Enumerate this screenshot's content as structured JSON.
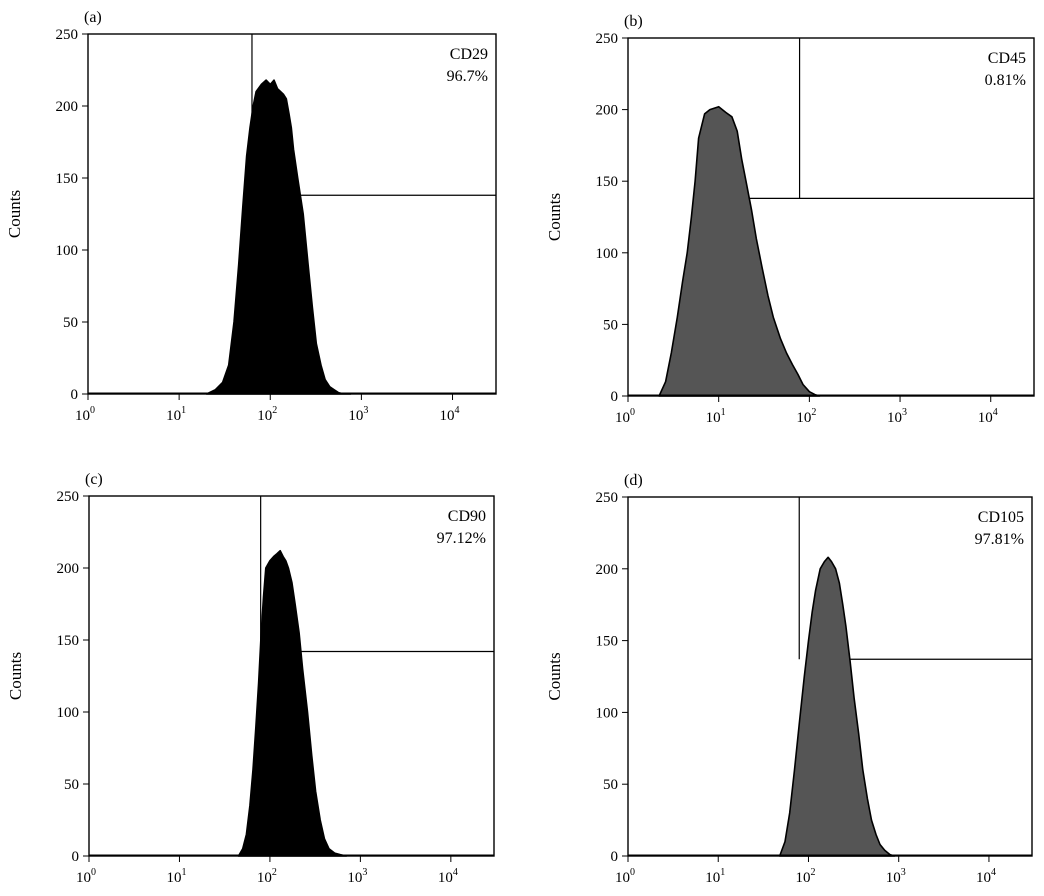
{
  "chart_data": [
    {
      "panel": "(a)",
      "type": "area",
      "ylabel": "Counts",
      "marker": "CD29",
      "percentage": "96.7%",
      "fill_color": "#000000",
      "x_scale": "log",
      "xlim": [
        1,
        30000
      ],
      "ylim": [
        0,
        250
      ],
      "x_ticks": [
        {
          "base": "10",
          "exp": "0"
        },
        {
          "base": "10",
          "exp": "1"
        },
        {
          "base": "10",
          "exp": "2"
        },
        {
          "base": "10",
          "exp": "3"
        },
        {
          "base": "10",
          "exp": "4"
        }
      ],
      "y_ticks": [
        "0",
        "50",
        "100",
        "150",
        "200",
        "250"
      ],
      "gate_x": 63,
      "gate_bar_y": 138,
      "x": [
        20,
        25,
        30,
        35,
        40,
        45,
        50,
        55,
        60,
        65,
        70,
        80,
        90,
        100,
        110,
        120,
        130,
        140,
        150,
        160,
        170,
        180,
        200,
        230,
        260,
        290,
        320,
        360,
        400,
        450,
        500,
        560,
        650,
        760
      ],
      "values": [
        0,
        3,
        8,
        20,
        50,
        90,
        130,
        165,
        185,
        200,
        210,
        215,
        218,
        215,
        218,
        212,
        210,
        208,
        205,
        195,
        185,
        170,
        150,
        125,
        90,
        60,
        35,
        20,
        10,
        5,
        3,
        1,
        0,
        0
      ]
    },
    {
      "panel": "(b)",
      "type": "area",
      "ylabel": "Counts",
      "marker": "CD45",
      "percentage": "0.81%",
      "fill_color": "#555555",
      "x_scale": "log",
      "xlim": [
        1,
        30000
      ],
      "ylim": [
        0,
        250
      ],
      "x_ticks": [
        {
          "base": "10",
          "exp": "0"
        },
        {
          "base": "10",
          "exp": "1"
        },
        {
          "base": "10",
          "exp": "2"
        },
        {
          "base": "10",
          "exp": "3"
        },
        {
          "base": "10",
          "exp": "4"
        }
      ],
      "y_ticks": [
        "0",
        "50",
        "100",
        "150",
        "200",
        "250"
      ],
      "gate_x": 78,
      "gate_bar_y": 138,
      "x": [
        2.2,
        2.6,
        3,
        3.5,
        4,
        4.5,
        5,
        5.5,
        6,
        7,
        8,
        10,
        12,
        14,
        16,
        18,
        20,
        23,
        26,
        30,
        35,
        40,
        48,
        56,
        65,
        75,
        85,
        100,
        115,
        130
      ],
      "values": [
        0,
        10,
        30,
        55,
        80,
        100,
        125,
        150,
        180,
        197,
        200,
        202,
        198,
        195,
        185,
        165,
        150,
        130,
        110,
        90,
        70,
        55,
        40,
        30,
        22,
        15,
        8,
        3,
        1,
        0
      ]
    },
    {
      "panel": "(c)",
      "type": "area",
      "ylabel": "Counts",
      "marker": "CD90",
      "percentage": "97.12%",
      "fill_color": "#000000",
      "x_scale": "log",
      "xlim": [
        1,
        30000
      ],
      "ylim": [
        0,
        250
      ],
      "x_ticks": [
        {
          "base": "10",
          "exp": "0"
        },
        {
          "base": "10",
          "exp": "1"
        },
        {
          "base": "10",
          "exp": "2"
        },
        {
          "base": "10",
          "exp": "3"
        },
        {
          "base": "10",
          "exp": "4"
        }
      ],
      "y_ticks": [
        "0",
        "50",
        "100",
        "150",
        "200",
        "250"
      ],
      "gate_x": 79,
      "gate_bar_y": 142,
      "x": [
        45,
        50,
        55,
        60,
        65,
        70,
        75,
        80,
        85,
        90,
        100,
        110,
        120,
        130,
        140,
        150,
        160,
        175,
        190,
        210,
        230,
        260,
        290,
        320,
        360,
        400,
        450,
        520,
        600,
        700
      ],
      "values": [
        0,
        5,
        15,
        35,
        60,
        90,
        120,
        155,
        180,
        200,
        205,
        208,
        210,
        212,
        208,
        205,
        200,
        190,
        175,
        155,
        130,
        100,
        70,
        45,
        25,
        12,
        5,
        2,
        1,
        0
      ]
    },
    {
      "panel": "(d)",
      "type": "area",
      "ylabel": "Counts",
      "marker": "CD105",
      "percentage": "97.81%",
      "fill_color": "#555555",
      "x_scale": "log",
      "xlim": [
        1,
        30000
      ],
      "ylim": [
        0,
        250
      ],
      "x_ticks": [
        {
          "base": "10",
          "exp": "0"
        },
        {
          "base": "10",
          "exp": "1"
        },
        {
          "base": "10",
          "exp": "2"
        },
        {
          "base": "10",
          "exp": "3"
        },
        {
          "base": "10",
          "exp": "4"
        }
      ],
      "y_ticks": [
        "0",
        "50",
        "100",
        "150",
        "200",
        "250"
      ],
      "gate_x": 79,
      "gate_bar_y": 137,
      "x": [
        48,
        55,
        62,
        70,
        80,
        90,
        100,
        110,
        120,
        135,
        150,
        165,
        180,
        200,
        220,
        240,
        260,
        290,
        320,
        360,
        400,
        450,
        500,
        560,
        620,
        700,
        800,
        900
      ],
      "values": [
        0,
        10,
        30,
        60,
        95,
        125,
        150,
        170,
        185,
        200,
        205,
        208,
        205,
        200,
        190,
        175,
        160,
        135,
        110,
        85,
        60,
        40,
        25,
        15,
        8,
        4,
        1,
        0
      ]
    }
  ]
}
